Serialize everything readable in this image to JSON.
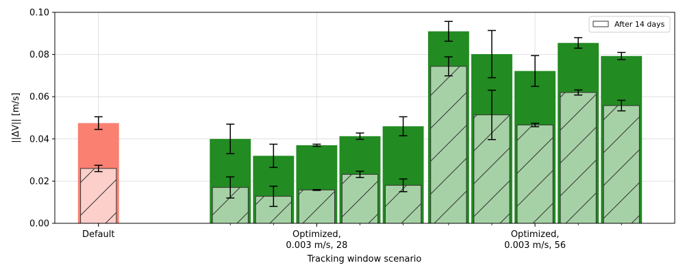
{
  "chart_data": {
    "type": "bar",
    "title": "",
    "xlabel": "Tracking window scenario",
    "ylabel": "||ΔV|| [m/s]",
    "ylim": [
      0,
      0.1
    ],
    "yticks": [
      "0.00",
      "0.02",
      "0.04",
      "0.06",
      "0.08",
      "0.10"
    ],
    "grid": true,
    "legend": {
      "position": "top-right",
      "entries": [
        "After 14 days"
      ]
    },
    "colors": {
      "default_full": "#fa8072",
      "default_14d": "#fccfca",
      "optimized_full": "#228b22",
      "optimized_14d": "#a6d1a6",
      "outline_14d": "#333333",
      "error_bar": "#000000"
    },
    "groups": [
      {
        "label": "Default",
        "kind": "default",
        "bars": [
          {
            "total": 0.0475,
            "total_err": 0.003,
            "after14": 0.026,
            "after14_err": 0.0015
          }
        ]
      },
      {
        "label": "Optimized,\n0.003 m/s, 28",
        "kind": "optimized",
        "bars": [
          {
            "total": 0.04,
            "total_err": 0.007,
            "after14": 0.017,
            "after14_err": 0.005
          },
          {
            "total": 0.032,
            "total_err": 0.0055,
            "after14": 0.0128,
            "after14_err": 0.0048
          },
          {
            "total": 0.037,
            "total_err": 0.0005,
            "after14": 0.0158,
            "after14_err": 0.0002
          },
          {
            "total": 0.0413,
            "total_err": 0.0015,
            "after14": 0.0232,
            "after14_err": 0.0015
          },
          {
            "total": 0.046,
            "total_err": 0.0045,
            "after14": 0.018,
            "after14_err": 0.003
          }
        ]
      },
      {
        "label": "Optimized,\n0.003 m/s, 56",
        "kind": "optimized",
        "bars": [
          {
            "total": 0.091,
            "total_err": 0.0047,
            "after14": 0.0744,
            "after14_err": 0.0045
          },
          {
            "total": 0.0802,
            "total_err": 0.0112,
            "after14": 0.0514,
            "after14_err": 0.0117
          },
          {
            "total": 0.0722,
            "total_err": 0.0073,
            "after14": 0.0466,
            "after14_err": 0.0008
          },
          {
            "total": 0.0855,
            "total_err": 0.0025,
            "after14": 0.062,
            "after14_err": 0.0012
          },
          {
            "total": 0.0793,
            "total_err": 0.0017,
            "after14": 0.0558,
            "after14_err": 0.0025
          }
        ]
      }
    ]
  }
}
